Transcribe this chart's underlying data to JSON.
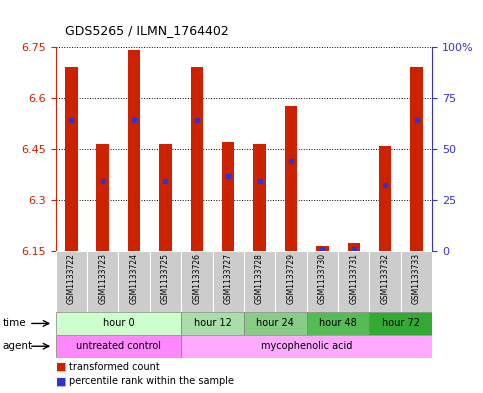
{
  "title": "GDS5265 / ILMN_1764402",
  "samples": [
    "GSM1133722",
    "GSM1133723",
    "GSM1133724",
    "GSM1133725",
    "GSM1133726",
    "GSM1133727",
    "GSM1133728",
    "GSM1133729",
    "GSM1133730",
    "GSM1133731",
    "GSM1133732",
    "GSM1133733"
  ],
  "bar_tops": [
    6.69,
    6.465,
    6.74,
    6.465,
    6.69,
    6.47,
    6.465,
    6.575,
    6.165,
    6.175,
    6.46,
    6.69
  ],
  "bar_bottom": 6.15,
  "blue_values": [
    6.535,
    6.355,
    6.535,
    6.355,
    6.535,
    6.37,
    6.355,
    6.415,
    6.155,
    6.155,
    6.345,
    6.535
  ],
  "ylim": [
    6.15,
    6.75
  ],
  "yticks": [
    6.15,
    6.3,
    6.45,
    6.6,
    6.75
  ],
  "ytick_labels": [
    "6.15",
    "6.3",
    "6.45",
    "6.6",
    "6.75"
  ],
  "y2ticks": [
    0,
    25,
    50,
    75,
    100
  ],
  "y2tick_labels": [
    "0",
    "25",
    "50",
    "75",
    "100%"
  ],
  "bar_color": "#CC2200",
  "blue_color": "#3333CC",
  "time_colors": [
    "#CCFFCC",
    "#AADDAA",
    "#88CC88",
    "#55BB55",
    "#33AA33"
  ],
  "agent_colors": [
    "#FF88FF",
    "#FFAAFF"
  ],
  "sample_bg": "#CCCCCC",
  "time_groups": [
    {
      "label": "hour 0",
      "samples": [
        0,
        1,
        2,
        3
      ]
    },
    {
      "label": "hour 12",
      "samples": [
        4,
        5
      ]
    },
    {
      "label": "hour 24",
      "samples": [
        6,
        7
      ]
    },
    {
      "label": "hour 48",
      "samples": [
        8,
        9
      ]
    },
    {
      "label": "hour 72",
      "samples": [
        10,
        11
      ]
    }
  ],
  "agent_groups": [
    {
      "label": "untreated control",
      "samples": [
        0,
        1,
        2,
        3
      ]
    },
    {
      "label": "mycophenolic acid",
      "samples": [
        4,
        5,
        6,
        7,
        8,
        9,
        10,
        11
      ]
    }
  ],
  "legend_items": [
    {
      "color": "#CC2200",
      "label": "transformed count"
    },
    {
      "color": "#3333CC",
      "label": "percentile rank within the sample"
    }
  ]
}
